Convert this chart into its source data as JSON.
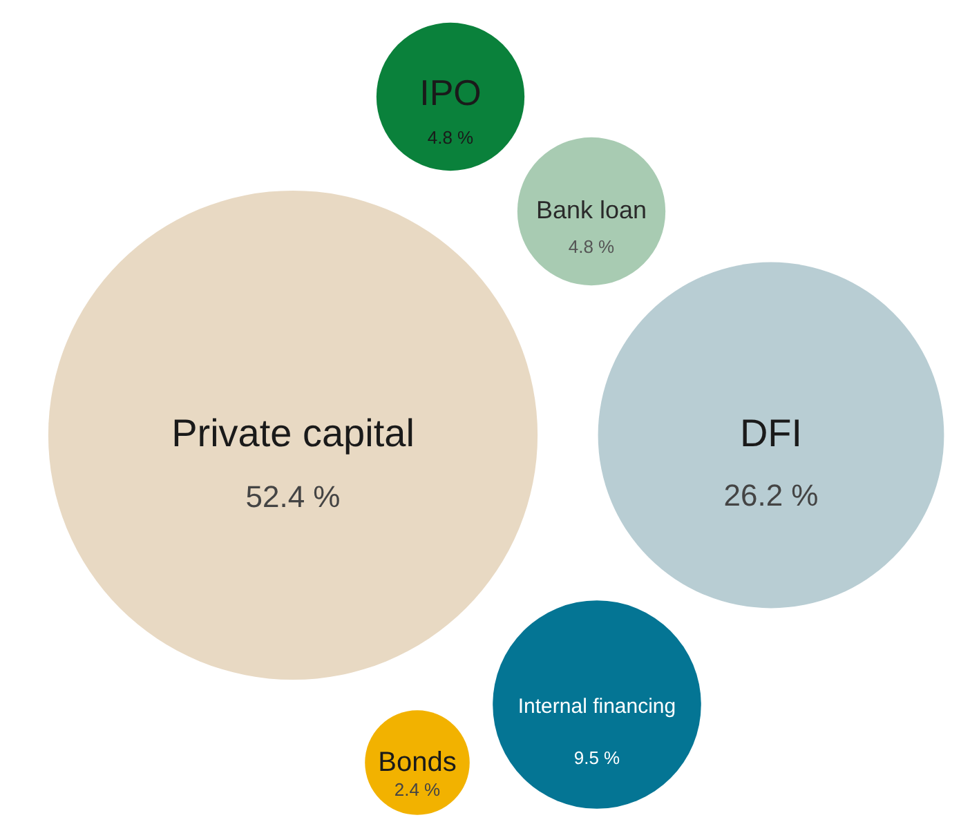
{
  "chart_data": {
    "type": "other",
    "categories": [
      "IPO",
      "Bank loan",
      "Private capital",
      "DFI",
      "Internal financing",
      "Bonds"
    ],
    "values": [
      4.8,
      4.8,
      52.4,
      26.2,
      9.5,
      2.4
    ],
    "value_labels": [
      "4.8 %",
      "4.8 %",
      "52.4 %",
      "26.2 %",
      "9.5 %",
      "2.4 %"
    ],
    "colors": [
      "#0a813b",
      "#a8cbb2",
      "#e8d9c3",
      "#b8cdd3",
      "#047594",
      "#f2b200"
    ]
  }
}
